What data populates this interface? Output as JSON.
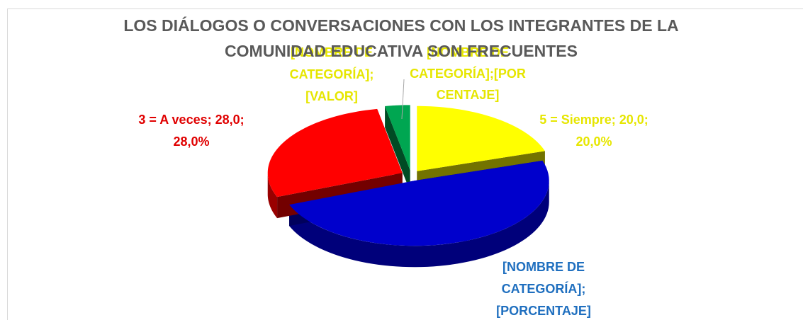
{
  "chart_data": {
    "type": "pie3d",
    "title": [
      "LOS DIÁLOGOS O CONVERSACIONES CON LOS INTEGRANTES DE LA",
      "COMUNIDAD EDUCATIVA SON FRECUENTES"
    ],
    "categories": [
      "5 = Siempre",
      null,
      "3 =  A veces",
      null
    ],
    "values": [
      20,
      49,
      28,
      3
    ],
    "colors": [
      "#ffff00",
      "#0000cc",
      "#ff0000",
      "#00a651"
    ],
    "labels": [
      [
        "5 = Siempre; 20,0;",
        "20,0%"
      ],
      [
        "[NOMBRE DE",
        "CATEGORÍA];",
        "[PORCENTAJE]"
      ],
      [
        "3 =  A veces; 28,0;",
        "28,0%"
      ],
      [
        "[NOMBRE DE",
        "CATEGORÍA];",
        "[VALOR]"
      ]
    ],
    "label_colors": [
      "#e6e600",
      "#1f6fbf",
      "#e00000",
      "#e6e600"
    ],
    "annotations": [
      [
        "[NOMBRE DE",
        "CATEGORÍA];[POR",
        "CENTAJE]"
      ]
    ]
  }
}
